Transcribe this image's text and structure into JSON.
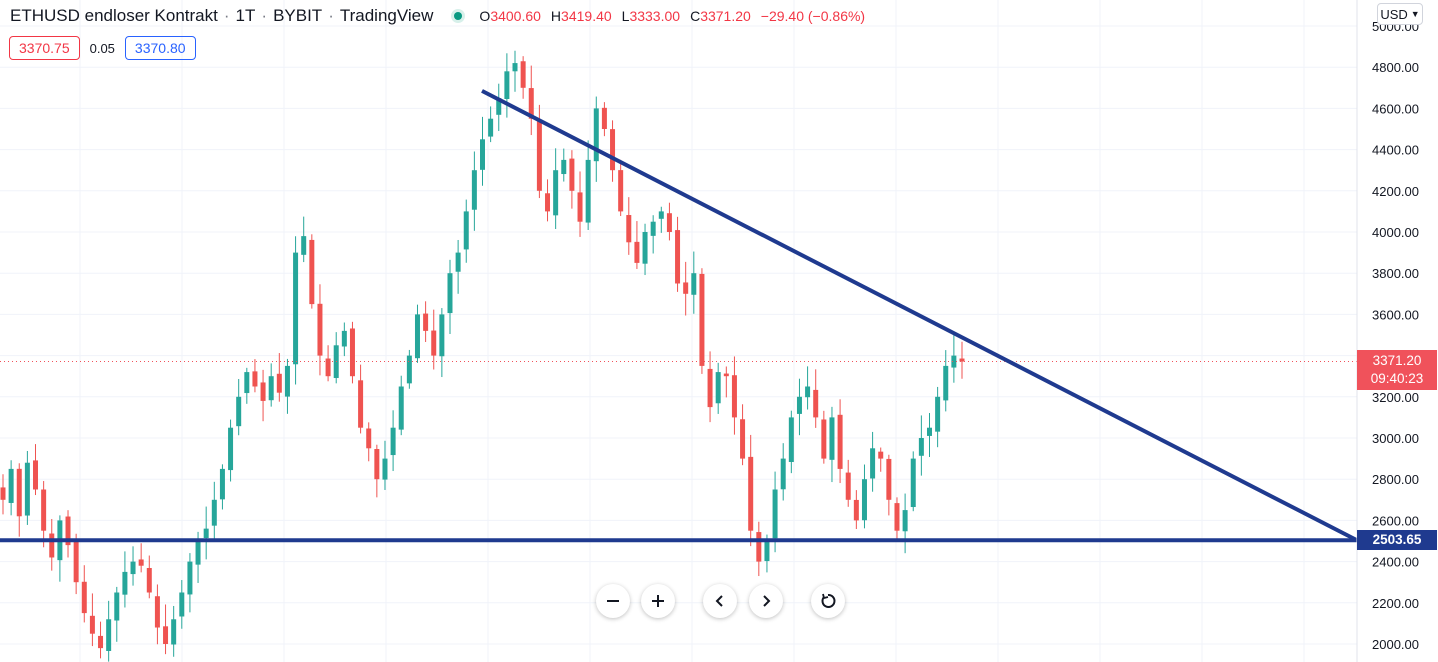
{
  "header": {
    "symbol": "ETHUSD endloser Kontrakt",
    "interval": "1T",
    "exchange": "BYBIT",
    "source": "TradingView",
    "ohlc": {
      "o_label": "O",
      "o": "3400.60",
      "h_label": "H",
      "h": "3419.40",
      "l_label": "L",
      "l": "3333.00",
      "c_label": "C",
      "c": "3371.20",
      "change": "−29.40 (−0.86%)"
    }
  },
  "quote": {
    "bid": "3370.75",
    "spread": "0.05",
    "ask": "3370.80"
  },
  "currency": "USD",
  "last_price": {
    "price": "3371.20",
    "countdown": "09:40:23"
  },
  "level_label": "2503.65",
  "colors": {
    "up": "#26a69a",
    "down": "#ef5350",
    "trendline": "#1f3a8f",
    "last": "#f0525b"
  },
  "nav_icons": [
    "minus-icon",
    "plus-icon",
    "chevron-left-icon",
    "chevron-right-icon",
    "reset-icon"
  ],
  "chart_data": {
    "type": "candlestick",
    "ylim": [
      1950,
      5050
    ],
    "y_ticks": [
      2000,
      2200,
      2400,
      2600,
      2800,
      3000,
      3200,
      3400,
      3600,
      3800,
      4000,
      4200,
      4400,
      4600,
      4800,
      5000
    ],
    "y_tick_labels": [
      "2000.00",
      "2200.00",
      "2400.00",
      "2600.00",
      "2800.00",
      "3000.00",
      "3200.00",
      "3400.00",
      "3600.00",
      "3800.00",
      "4000.00",
      "4200.00",
      "4400.00",
      "4600.00",
      "4800.00",
      "5000.00"
    ],
    "closes": [
      2700,
      2850,
      2620,
      2880,
      2750,
      2550,
      2420,
      2600,
      2480,
      2300,
      2150,
      2050,
      1980,
      2120,
      2250,
      2350,
      2400,
      2380,
      2250,
      2080,
      2000,
      2120,
      2250,
      2400,
      2500,
      2560,
      2700,
      2850,
      3050,
      3200,
      3320,
      3250,
      3180,
      3300,
      3220,
      3350,
      3900,
      3980,
      3650,
      3400,
      3300,
      3450,
      3520,
      3300,
      3050,
      2950,
      2800,
      2900,
      3050,
      3250,
      3400,
      3600,
      3520,
      3400,
      3600,
      3800,
      3900,
      4100,
      4300,
      4450,
      4550,
      4650,
      4780,
      4820,
      4700,
      4550,
      4200,
      4100,
      4300,
      4350,
      4200,
      4050,
      4350,
      4600,
      4500,
      4300,
      4100,
      3950,
      3850,
      4000,
      4050,
      4100,
      4000,
      3750,
      3700,
      3800,
      3350,
      3150,
      3320,
      3300,
      3100,
      2900,
      2550,
      2400,
      2500,
      2750,
      2900,
      3100,
      3200,
      3250,
      3100,
      2900,
      3100,
      2850,
      2700,
      2600,
      2800,
      2950,
      2900,
      2700,
      2550,
      2650,
      2900,
      3000,
      3050,
      3200,
      3350,
      3400,
      3371.2
    ],
    "level": 2503.65,
    "trendline": [
      [
        4685,
        0
      ],
      [
        2503.65,
        1
      ]
    ]
  }
}
